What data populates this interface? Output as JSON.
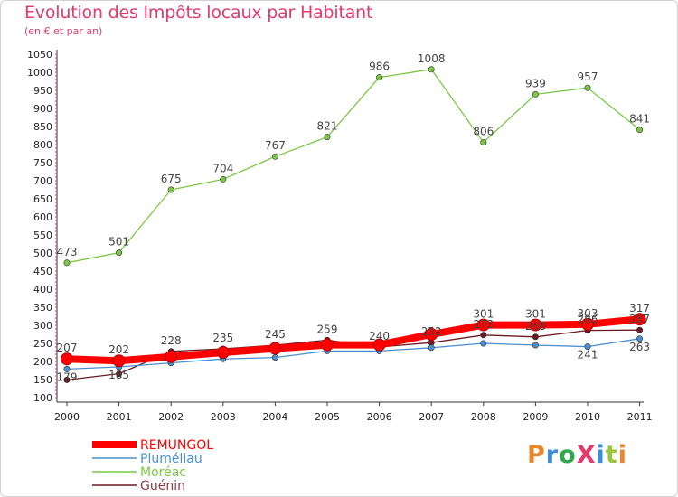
{
  "header": {
    "title": "Evolution des Impôts locaux par Habitant",
    "subtitle": "(en € et par an)"
  },
  "logo": {
    "text": "ProXiti",
    "colors": [
      "#e8882b",
      "#3a8fd8",
      "#2fa84f",
      "#e23a6a",
      "#3a8fd8",
      "#9bc53d",
      "#e8882b"
    ]
  },
  "chart_data": {
    "type": "line",
    "title": "Evolution des Impôts locaux par Habitant",
    "subtitle": "(en € et par an)",
    "xlabel": "",
    "ylabel": "",
    "ylim": [
      100,
      1050
    ],
    "ytick_step": 50,
    "grid": false,
    "legend_position": "bottom-left",
    "categories": [
      "2000",
      "2001",
      "2002",
      "2003",
      "2004",
      "2005",
      "2006",
      "2007",
      "2008",
      "2009",
      "2010",
      "2011"
    ],
    "series": [
      {
        "name": "REMUNGOL",
        "color": "#ff0000",
        "values": [
          207,
          202,
          213,
          225,
          236,
          246,
          246,
          275,
          301,
          301,
          303,
          317
        ],
        "labels": [
          "207",
          "202",
          "",
          "",
          "",
          "",
          "",
          "",
          "301",
          "301",
          "303",
          "317"
        ]
      },
      {
        "name": "Pluméliau",
        "color": "#4a90d0",
        "values": [
          179,
          185,
          196,
          207,
          211,
          229,
          229,
          238,
          250,
          245,
          241,
          263
        ],
        "labels": [
          "179",
          "185",
          "",
          "",
          "",
          "",
          "",
          "",
          "",
          "",
          "241",
          "263"
        ]
      },
      {
        "name": "Moréac",
        "color": "#7cc844",
        "values": [
          473,
          501,
          675,
          704,
          767,
          821,
          986,
          1008,
          806,
          939,
          957,
          841
        ],
        "labels": [
          "473",
          "501",
          "675",
          "704",
          "767",
          "821",
          "986",
          "1008",
          "806",
          "939",
          "957",
          "841"
        ]
      },
      {
        "name": "Guénin",
        "color": "#6b1a20",
        "values": [
          149,
          166,
          228,
          235,
          245,
          259,
          240,
          252,
          273,
          268,
          286,
          287
        ],
        "labels": [
          "",
          "",
          "228",
          "235",
          "245",
          "259",
          "240",
          "252",
          "273",
          "268",
          "286",
          "287"
        ]
      }
    ]
  }
}
